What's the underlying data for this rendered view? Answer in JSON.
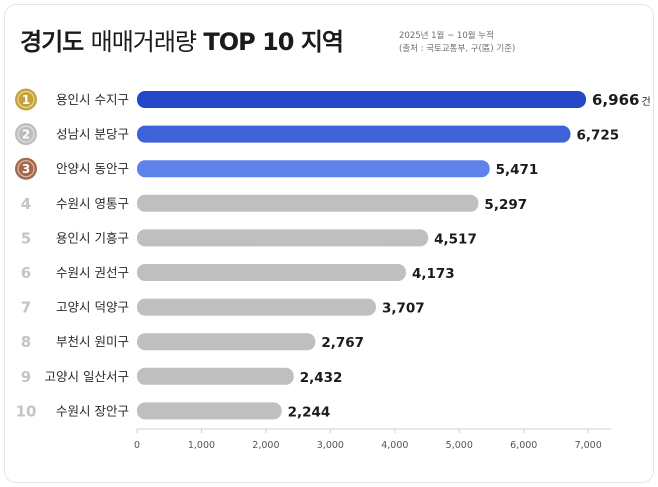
{
  "title": {
    "part1": "경기도",
    "part2": "매매거래량",
    "part3": "TOP 10 지역"
  },
  "note": {
    "period": "2025년 1월 ~ 10월 누적",
    "source": "(출처 : 국토교통부, 구(區) 기준)"
  },
  "colors": {
    "rank1": "#2347c6",
    "rank2": "#3e62d8",
    "rank3": "#5d82ea",
    "other": "#bfbfbf",
    "gold": "#c7a23a",
    "silver": "#bdbdbd",
    "bronze": "#a4684b",
    "rank_text_other": "#c4c4c4"
  },
  "chart_data": {
    "type": "bar",
    "orientation": "horizontal",
    "categories": [
      "용인시 수지구",
      "성남시 분당구",
      "안양시 동안구",
      "수원시 영통구",
      "용인시 기흥구",
      "수원시 권선구",
      "고양시 덕양구",
      "부천시 원미구",
      "고양시 일산서구",
      "수원시 장안구"
    ],
    "ranks": [
      "1",
      "2",
      "3",
      "4",
      "5",
      "6",
      "7",
      "8",
      "9",
      "10"
    ],
    "values": [
      6966,
      6725,
      5471,
      5297,
      4517,
      4173,
      3707,
      2767,
      2432,
      2244
    ],
    "value_labels": [
      "6,966",
      "6,725",
      "5,471",
      "5,297",
      "4,517",
      "4,173",
      "3,707",
      "2,767",
      "2,432",
      "2,244"
    ],
    "first_value_unit": "건",
    "x_ticks": [
      0,
      1000,
      2000,
      3000,
      4000,
      5000,
      6000,
      7000
    ],
    "x_tick_labels": [
      "0",
      "1,000",
      "2,000",
      "3,000",
      "4,000",
      "5,000",
      "6,000",
      "7,000"
    ],
    "xlim": [
      0,
      7000
    ],
    "grid": false,
    "legend": "none"
  }
}
